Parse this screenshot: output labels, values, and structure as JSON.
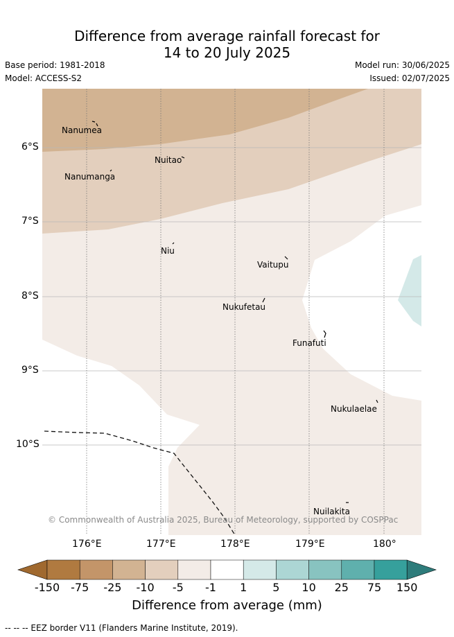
{
  "title_line1": "Difference from average rainfall forecast for",
  "title_line2": "14 to 20 July 2025",
  "left_meta": {
    "base_period": "Base period: 1981-2018",
    "model": "Model: ACCESS-S2"
  },
  "right_meta": {
    "model_run": "Model run: 30/06/2025",
    "issued": "Issued: 02/07/2025"
  },
  "map": {
    "lat_ticks": [
      "6°S",
      "7°S",
      "8°S",
      "9°S",
      "10°S"
    ],
    "lon_ticks": [
      "176°E",
      "177°E",
      "178°E",
      "179°E",
      "180°"
    ],
    "islands": [
      "Nanumea",
      "Nuitao",
      "Nanumanga",
      "Niu",
      "Vaitupu",
      "Nukufetau",
      "Funafuti",
      "Nukulaelae",
      "Nuilakita"
    ],
    "copyright": "© Commonwealth of Australia 2025, Bureau of Meteorology, supported by COSPPac",
    "colors": {
      "c_m25": "#d2b392",
      "c_m10": "#e3cfbd",
      "c_m5": "#f3ece7",
      "c_p1": "#ffffff",
      "c_p5": "#d4e9e8"
    }
  },
  "colorbar": {
    "labels": [
      "-150",
      "-75",
      "-25",
      "-10",
      "-5",
      "-1",
      "1",
      "5",
      "10",
      "25",
      "75",
      "150"
    ],
    "colors": [
      "#b07a40",
      "#c39569",
      "#d2b392",
      "#e3cfbd",
      "#f3ece7",
      "#ffffff",
      "#d4e9e8",
      "#acd6d4",
      "#88c3c0",
      "#5fb0ad",
      "#36a09c"
    ],
    "low_ext_color": "#a0692f",
    "high_ext_color": "#2e7c7b",
    "title": "Difference from average (mm)"
  },
  "footer": "-- -- -- EEZ border V11 (Flanders Marine Institute, 2019)."
}
